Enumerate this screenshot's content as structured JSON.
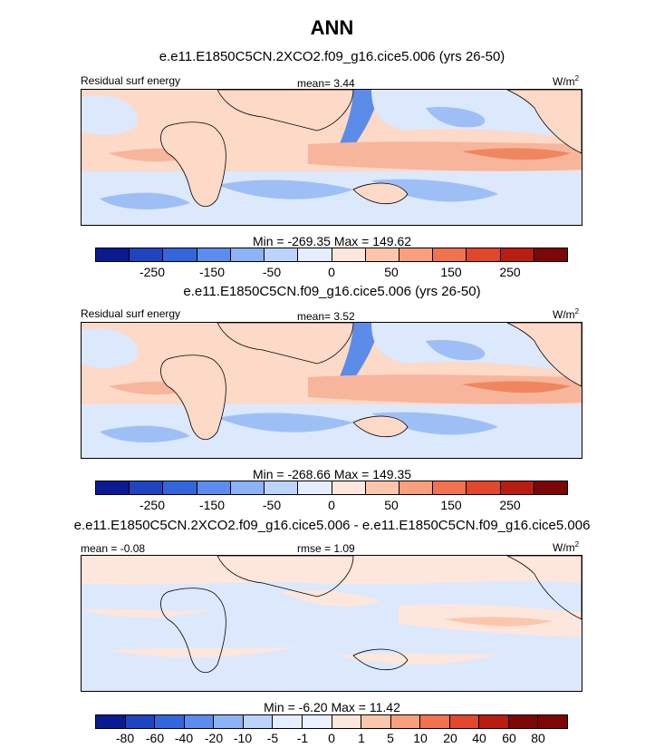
{
  "title": "ANN",
  "palette": [
    "#0c1a92",
    "#1f44c2",
    "#3366dd",
    "#5c8cf0",
    "#8cb2f7",
    "#bcd4fb",
    "#e4eefe",
    "#fde6dc",
    "#fcc6ad",
    "#fa9f7d",
    "#f2714e",
    "#e2462b",
    "#b91d10",
    "#7d0606"
  ],
  "colors": {
    "land": "#fdd9c7",
    "ocean_light_blue": "#dce8fc",
    "mid_blue": "#9ebff6",
    "deep_blue": "#5b8de8",
    "light_red": "#f7b59b",
    "mid_red": "#ef8660",
    "coast": "#000000"
  },
  "panels": [
    {
      "subtitle": "e.e11.E1850C5CN.2XCO2.f09_g16.cice5.006 (yrs 26-50)",
      "left_label": "Residual surf energy",
      "center_label": "mean=  3.44",
      "units": "W/m",
      "units_sup": "2",
      "minmax": "Min = -269.35 Max = 149.62",
      "cbar_ticks": [
        "-250",
        "-150",
        "-50",
        "0",
        "50",
        "150",
        "250"
      ]
    },
    {
      "subtitle": "e.e11.E1850C5CN.f09_g16.cice5.006 (yrs 26-50)",
      "left_label": "Residual surf energy",
      "center_label": "mean=  3.52",
      "units": "W/m",
      "units_sup": "2",
      "minmax": "Min = -268.66 Max = 149.35",
      "cbar_ticks": [
        "-250",
        "-150",
        "-50",
        "0",
        "50",
        "150",
        "250"
      ]
    },
    {
      "subtitle": "e.e11.E1850C5CN.2XCO2.f09_g16.cice5.006 - e.e11.E1850C5CN.f09_g16.cice5.006",
      "left_label": "mean =  -0.08",
      "center_label": "rmse =  1.09",
      "units": "W/m",
      "units_sup": "2",
      "minmax": "Min =  -6.20 Max =  11.42",
      "cbar_ticks": [
        "-80",
        "-60",
        "-40",
        "-20",
        "-10",
        "-5",
        "-1",
        "0",
        "1",
        "5",
        "10",
        "20",
        "40",
        "60",
        "80"
      ]
    }
  ]
}
